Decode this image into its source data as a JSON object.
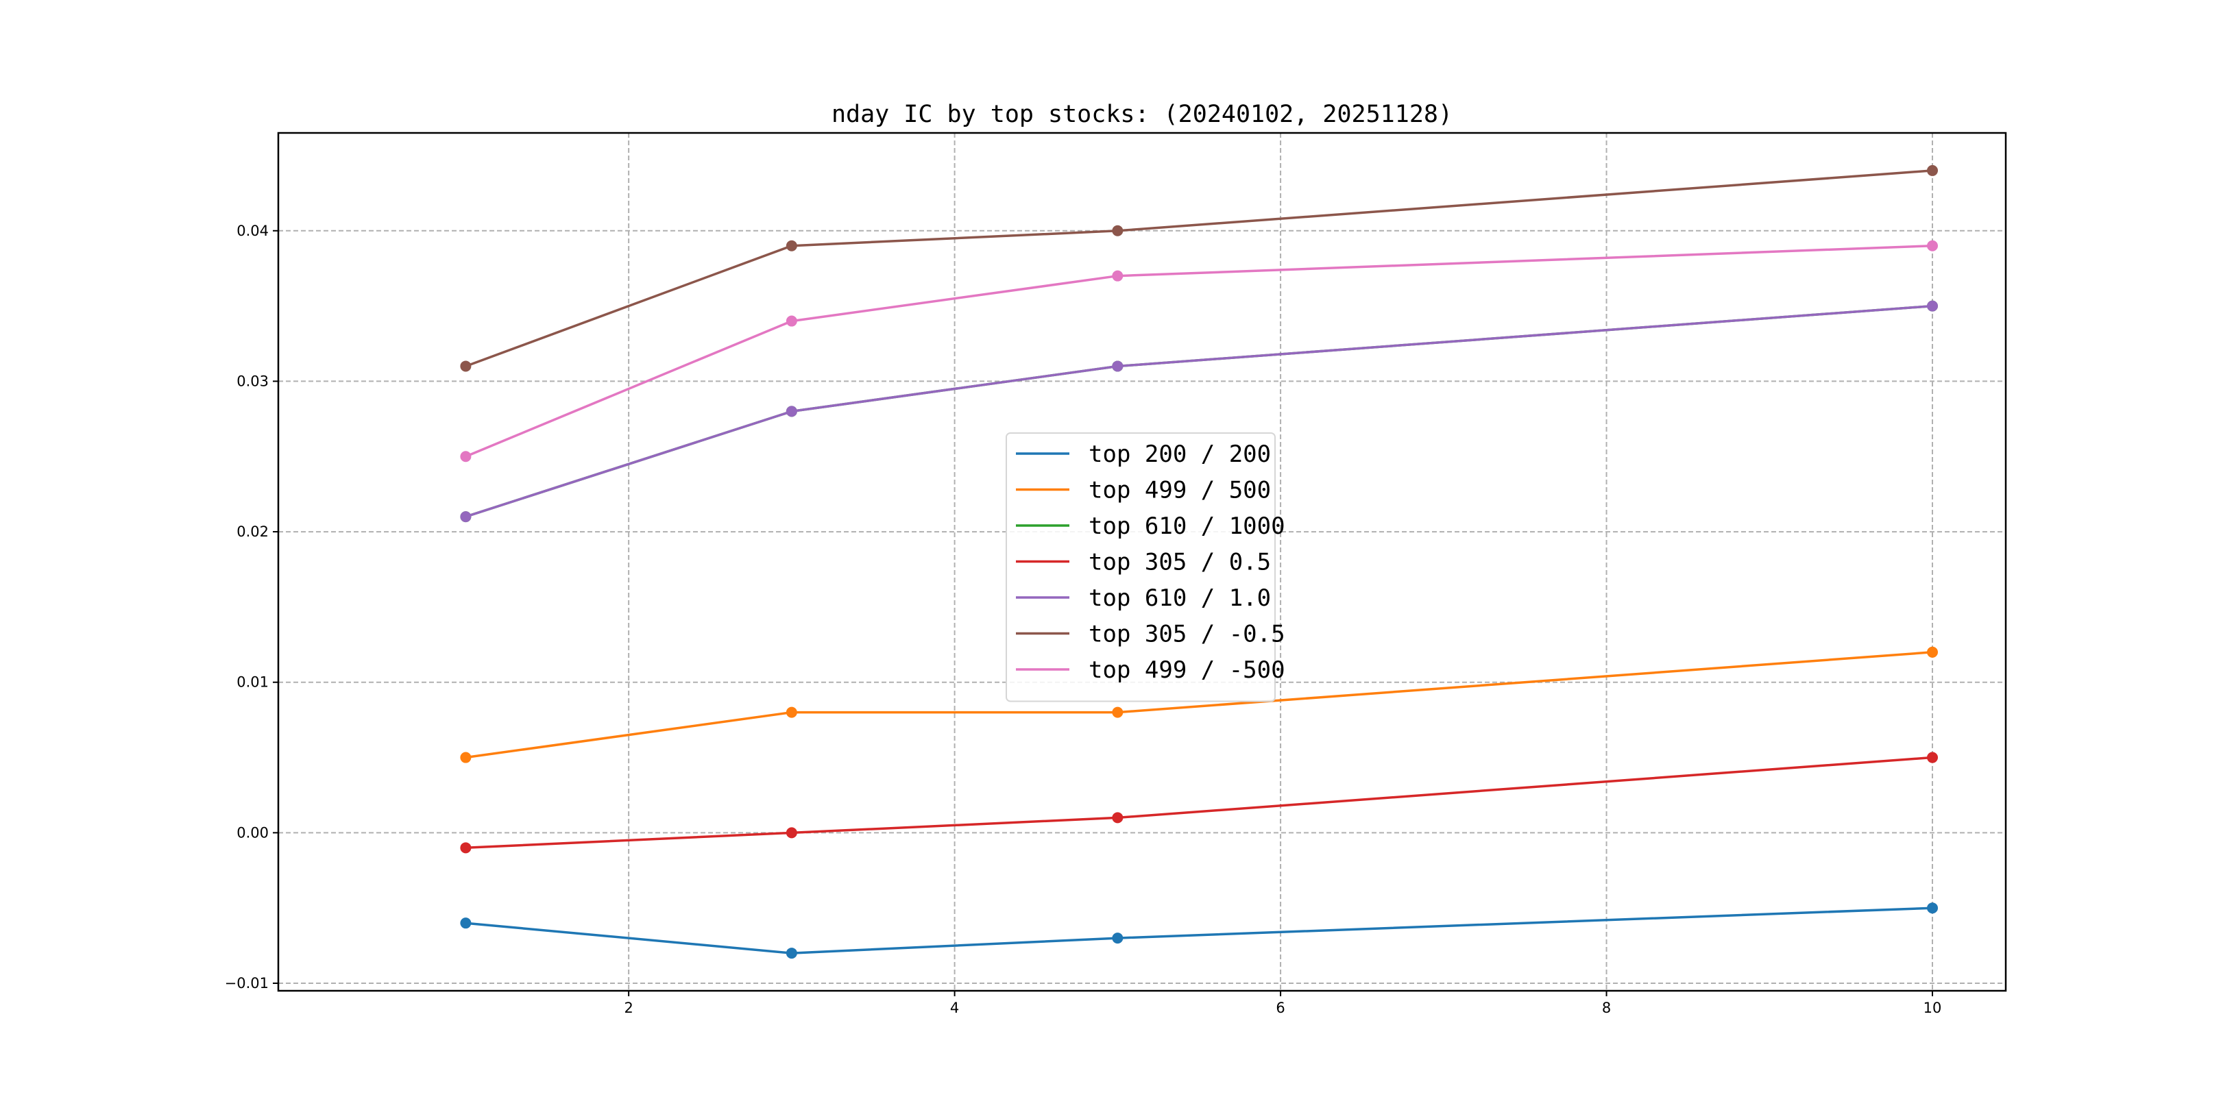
{
  "chart_data": {
    "type": "line",
    "title": "nday IC by top stocks: (20240102, 20251128)",
    "xlabel": "",
    "ylabel": "",
    "xlim": [
      -0.15,
      10.45
    ],
    "ylim": [
      -0.0105,
      0.0465
    ],
    "xticks": [
      2,
      4,
      6,
      8,
      10
    ],
    "xtick_labels": [
      "2",
      "4",
      "6",
      "8",
      "10"
    ],
    "yticks": [
      -0.01,
      0.0,
      0.01,
      0.02,
      0.03,
      0.04
    ],
    "ytick_labels": [
      "−0.01",
      "0.00",
      "0.01",
      "0.02",
      "0.03",
      "0.04"
    ],
    "grid": true,
    "legend_position": "center",
    "x": [
      1,
      3,
      5,
      10
    ],
    "series": [
      {
        "name": "top 200 / 200",
        "color": "#1f77b4",
        "values": [
          -0.006,
          -0.008,
          -0.007,
          -0.005
        ]
      },
      {
        "name": "top 499 / 500",
        "color": "#ff7f0e",
        "values": [
          0.005,
          0.008,
          0.008,
          0.012
        ]
      },
      {
        "name": "top 610 / 1000",
        "color": "#2ca02c",
        "values": [
          0.021,
          0.028,
          0.031,
          0.035
        ]
      },
      {
        "name": "top 305 / 0.5",
        "color": "#d62728",
        "values": [
          -0.001,
          0.0,
          0.001,
          0.005
        ]
      },
      {
        "name": "top 610 / 1.0",
        "color": "#9467bd",
        "values": [
          0.021,
          0.028,
          0.031,
          0.035
        ]
      },
      {
        "name": "top 305 / -0.5",
        "color": "#8c564b",
        "values": [
          0.031,
          0.039,
          0.04,
          0.044
        ]
      },
      {
        "name": "top 499 / -500",
        "color": "#e377c2",
        "values": [
          0.025,
          0.034,
          0.037,
          0.039
        ]
      }
    ]
  }
}
